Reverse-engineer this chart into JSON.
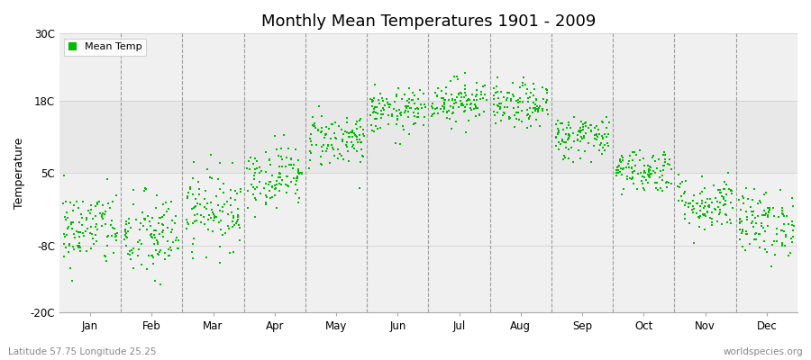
{
  "title": "Monthly Mean Temperatures 1901 - 2009",
  "ylabel": "Temperature",
  "xlabel_bottom_left": "Latitude 57.75 Longitude 25.25",
  "xlabel_bottom_right": "worldspecies.org",
  "legend_label": "Mean Temp",
  "dot_color": "#00bb00",
  "background_color": "#ffffff",
  "plot_bg_color": "#f0f0f0",
  "band_color": "#e8e8e8",
  "ylim": [
    -20,
    30
  ],
  "yticks": [
    -20,
    -8,
    5,
    18,
    30
  ],
  "ytick_labels": [
    "-20C",
    "-8C",
    "5C",
    "18C",
    "30C"
  ],
  "months": [
    "Jan",
    "Feb",
    "Mar",
    "Apr",
    "May",
    "Jun",
    "Jul",
    "Aug",
    "Sep",
    "Oct",
    "Nov",
    "Dec"
  ],
  "month_means": [
    -5.0,
    -6.5,
    -1.5,
    4.5,
    11.0,
    16.0,
    18.0,
    17.0,
    11.5,
    5.5,
    -0.5,
    -4.0
  ],
  "month_stds": [
    3.5,
    4.0,
    3.5,
    2.8,
    2.5,
    2.0,
    2.0,
    2.0,
    2.0,
    2.0,
    2.5,
    3.0
  ],
  "n_years": 109,
  "seed": 42
}
